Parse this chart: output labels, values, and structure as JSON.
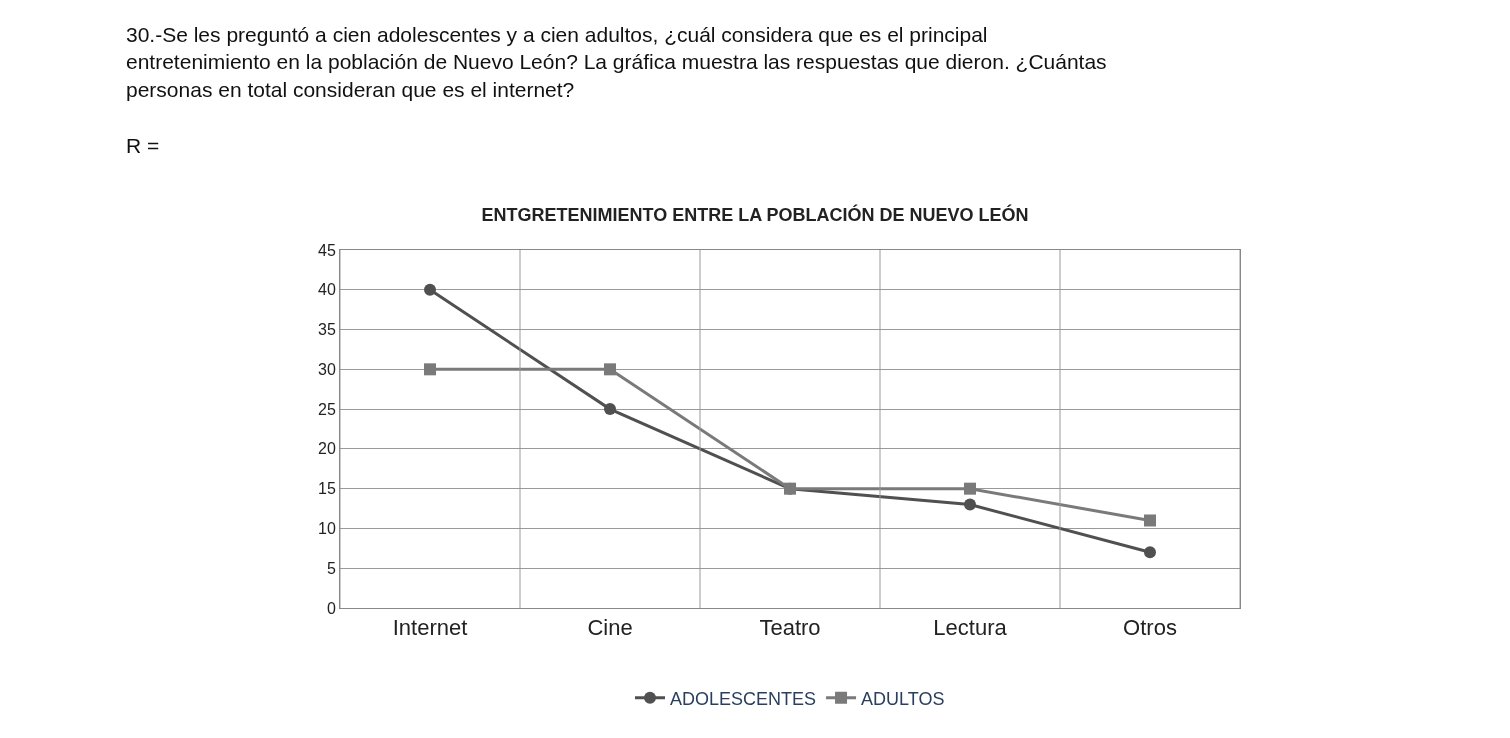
{
  "chart_data": {
    "type": "line",
    "title": "ENTGRETENIMIENTO ENTRE LA POBLACIÓN DE NUEVO LEÓN",
    "annotations": [
      "30.-Se les preguntó a cien adolescentes y a cien adultos, ¿cuál considera que es el principal entretenimiento en la población de Nuevo León? La gráfica muestra las respuestas que dieron. ¿Cuántas personas en total consideran que es el internet?",
      "R ="
    ],
    "categories": [
      "Internet",
      "Cine",
      "Teatro",
      "Lectura",
      "Otros"
    ],
    "series": [
      {
        "name": "ADOLESCENTES",
        "color": "#505050",
        "marker": "circle",
        "values": [
          40,
          25,
          15,
          13,
          7
        ]
      },
      {
        "name": "ADULTOS",
        "color": "#7a7a7a",
        "marker": "square",
        "values": [
          30,
          30,
          15,
          15,
          11
        ]
      }
    ],
    "ylim": [
      0,
      45
    ],
    "yticks": [
      0,
      5,
      10,
      15,
      20,
      25,
      30,
      35,
      40,
      45
    ],
    "grid": true,
    "legend": "bottom",
    "line_style": "solid"
  }
}
